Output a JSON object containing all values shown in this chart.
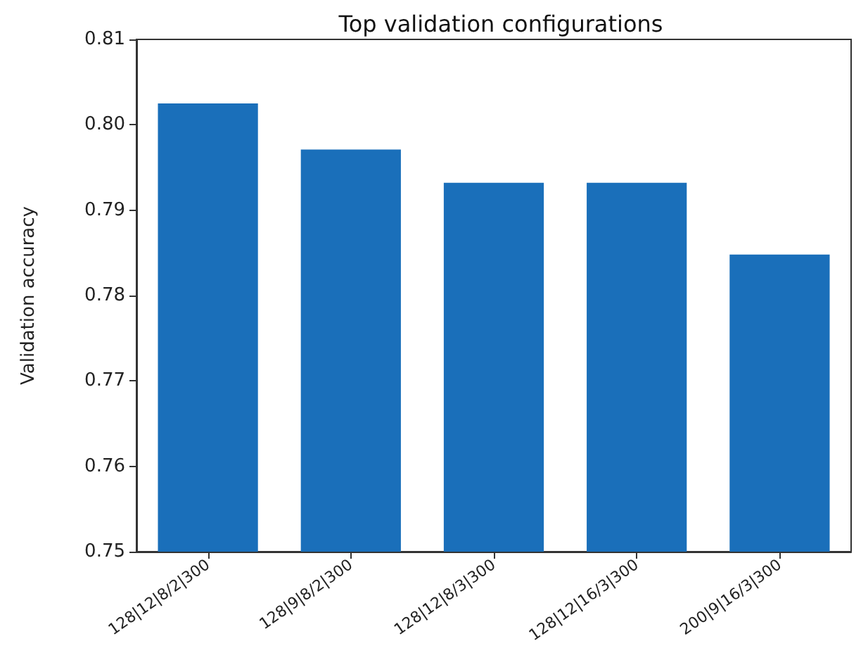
{
  "chart_data": {
    "type": "bar",
    "title": "Top validation configurations",
    "ylabel": "Validation accuracy",
    "categories": [
      "128|12|8/2|300",
      "128|9|8/2|300",
      "128|12|8/3|300",
      "128|12|16/3|300",
      "200|9|16/3|300"
    ],
    "values": [
      0.8025,
      0.7971,
      0.7932,
      0.7932,
      0.7848
    ],
    "color": "#1a6fba",
    "ylim": [
      0.75,
      0.81
    ],
    "yticks": [
      0.75,
      0.76,
      0.77,
      0.78,
      0.79,
      {
        "value": 0.8,
        "label": "0.80"
      },
      0.81
    ],
    "grid": false
  }
}
